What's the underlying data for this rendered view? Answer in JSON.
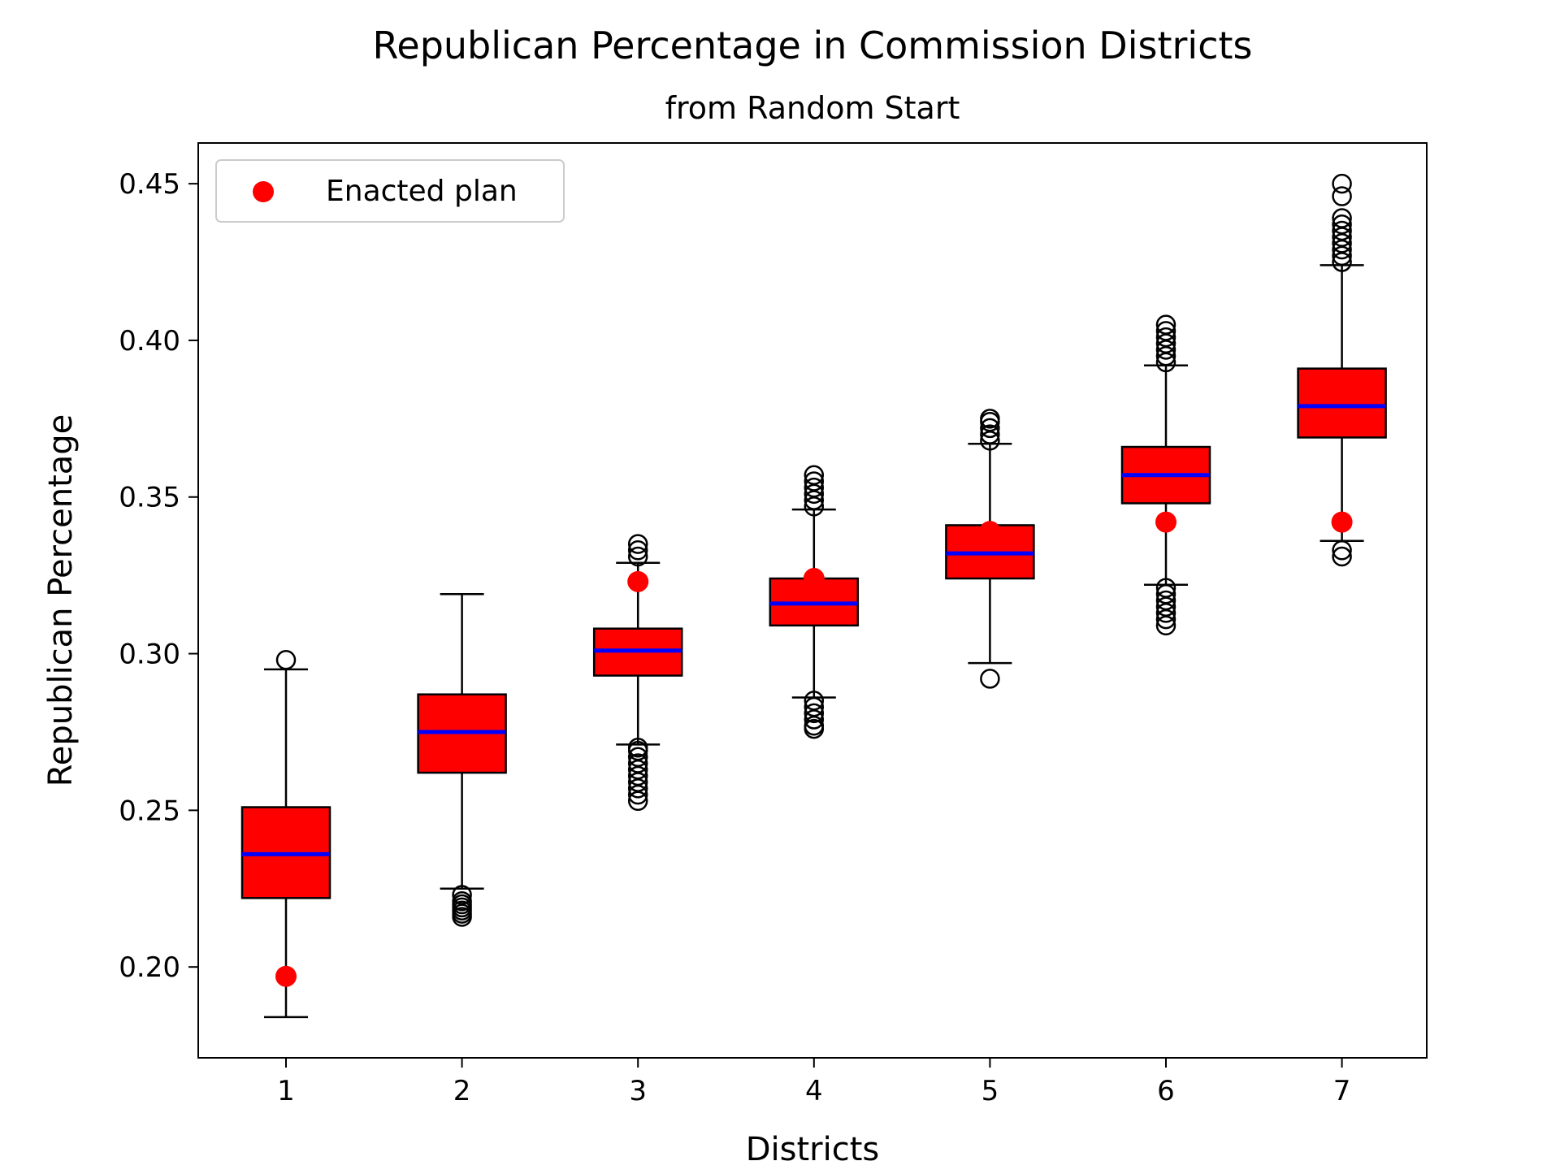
{
  "chart_data": {
    "type": "boxplot",
    "title": "Republican Percentage in Commission Districts",
    "subtitle": "from Random Start",
    "xlabel": "Districts",
    "ylabel": "Republican Percentage",
    "ylim": [
      0.171,
      0.463
    ],
    "yticks": [
      0.2,
      0.25,
      0.3,
      0.35,
      0.4,
      0.45
    ],
    "ytick_labels": [
      "0.20",
      "0.25",
      "0.30",
      "0.35",
      "0.40",
      "0.45"
    ],
    "categories": [
      "1",
      "2",
      "3",
      "4",
      "5",
      "6",
      "7"
    ],
    "legend": {
      "placement": "top-left",
      "entries": [
        "Enacted plan"
      ]
    },
    "colors": {
      "box_fill": "#ff0000",
      "median": "#0000ff",
      "enacted": "#ff0000",
      "outline": "#000000"
    },
    "boxes": [
      {
        "district": "1",
        "whisker_low": 0.184,
        "q1": 0.222,
        "median": 0.236,
        "q3": 0.251,
        "whisker_high": 0.295,
        "outliers": [
          0.298
        ]
      },
      {
        "district": "2",
        "whisker_low": 0.225,
        "q1": 0.262,
        "median": 0.275,
        "q3": 0.287,
        "whisker_high": 0.319,
        "outliers": [
          0.216,
          0.217,
          0.218,
          0.219,
          0.22,
          0.221,
          0.223
        ]
      },
      {
        "district": "3",
        "whisker_low": 0.271,
        "q1": 0.293,
        "median": 0.301,
        "q3": 0.308,
        "whisker_high": 0.329,
        "outliers": [
          0.253,
          0.255,
          0.257,
          0.259,
          0.261,
          0.263,
          0.265,
          0.267,
          0.269,
          0.27,
          0.331,
          0.333,
          0.335
        ]
      },
      {
        "district": "4",
        "whisker_low": 0.286,
        "q1": 0.309,
        "median": 0.316,
        "q3": 0.324,
        "whisker_high": 0.346,
        "outliers": [
          0.276,
          0.277,
          0.279,
          0.281,
          0.283,
          0.285,
          0.347,
          0.349,
          0.351,
          0.353,
          0.355,
          0.357
        ]
      },
      {
        "district": "5",
        "whisker_low": 0.297,
        "q1": 0.324,
        "median": 0.332,
        "q3": 0.341,
        "whisker_high": 0.367,
        "outliers": [
          0.292,
          0.368,
          0.37,
          0.372,
          0.374,
          0.375
        ]
      },
      {
        "district": "6",
        "whisker_low": 0.322,
        "q1": 0.348,
        "median": 0.357,
        "q3": 0.366,
        "whisker_high": 0.392,
        "outliers": [
          0.309,
          0.311,
          0.313,
          0.315,
          0.317,
          0.319,
          0.321,
          0.393,
          0.395,
          0.397,
          0.399,
          0.401,
          0.403,
          0.405
        ]
      },
      {
        "district": "7",
        "whisker_low": 0.336,
        "q1": 0.369,
        "median": 0.379,
        "q3": 0.391,
        "whisker_high": 0.424,
        "outliers": [
          0.331,
          0.333,
          0.425,
          0.427,
          0.429,
          0.431,
          0.433,
          0.435,
          0.437,
          0.439,
          0.446,
          0.45
        ]
      }
    ],
    "enacted_plan": [
      0.197,
      null,
      0.323,
      0.324,
      0.339,
      0.342,
      0.342
    ]
  }
}
